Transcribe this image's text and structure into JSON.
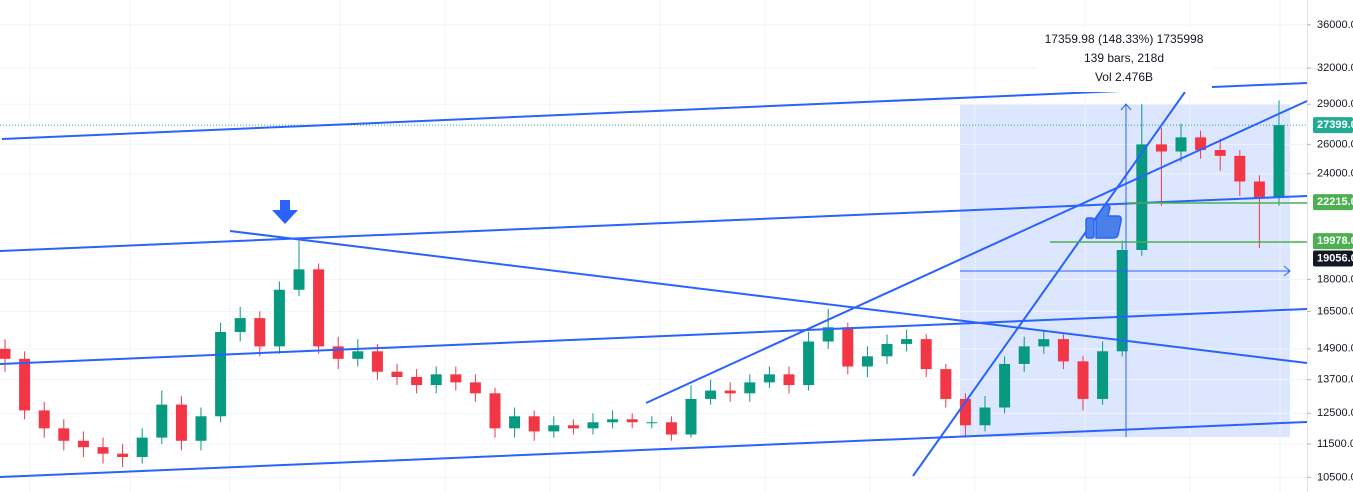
{
  "chart_data": {
    "type": "candlestick",
    "log_scale": true,
    "grid": true,
    "ylim": [
      10090,
      38520
    ],
    "yticks": [
      {
        "value": 36000,
        "label": "36000.0"
      },
      {
        "value": 32000,
        "label": "32000.0"
      },
      {
        "value": 29000,
        "label": "29000.0"
      },
      {
        "value": 26000,
        "label": "26000.0"
      },
      {
        "value": 24000,
        "label": "24000.0"
      },
      {
        "value": 18000,
        "label": "18000.0"
      },
      {
        "value": 16500,
        "label": "16500.0"
      },
      {
        "value": 14900,
        "label": "14900.0"
      },
      {
        "value": 13700,
        "label": "13700.0"
      },
      {
        "value": 12500,
        "label": "12500.0"
      },
      {
        "value": 11500,
        "label": "11500.0"
      },
      {
        "value": 10500,
        "label": "10500.0"
      }
    ],
    "up_color": "#089981",
    "down_color": "#f23645",
    "open": [
      14900,
      14500,
      12600,
      12000,
      11600,
      11400,
      11200,
      11100,
      11700,
      12800,
      11600,
      12400,
      15600,
      16200,
      15000,
      17500,
      18500,
      15000,
      14500,
      14800,
      14000,
      13800,
      13500,
      13900,
      13600,
      13200,
      12000,
      12400,
      11900,
      12100,
      12000,
      12200,
      12300,
      12200,
      12200,
      11800,
      13000,
      13300,
      13200,
      13600,
      13900,
      13500,
      15200,
      15800,
      14200,
      14600,
      15100,
      15300,
      14100,
      13000,
      12100,
      12700,
      14300,
      15000,
      15300,
      14400,
      13000,
      14800,
      19500,
      26000,
      25500,
      26500,
      25600,
      25200,
      23500,
      22500
    ],
    "high": [
      15300,
      14800,
      12900,
      12300,
      11900,
      11700,
      11500,
      12000,
      13300,
      13100,
      12700,
      16000,
      16700,
      16500,
      17900,
      20000,
      18800,
      15400,
      15300,
      15100,
      14300,
      14100,
      14200,
      14200,
      13900,
      13400,
      12700,
      12600,
      12400,
      12300,
      12500,
      12600,
      12500,
      12400,
      12400,
      13500,
      13700,
      13600,
      13900,
      14200,
      14200,
      15600,
      16600,
      16000,
      15000,
      15500,
      15700,
      15500,
      14300,
      13200,
      13100,
      14600,
      15400,
      15700,
      15500,
      14600,
      15200,
      20000,
      29000,
      27200,
      27500,
      27000,
      26400,
      25600,
      23900,
      29300
    ],
    "low": [
      14000,
      12300,
      11700,
      11300,
      11100,
      10900,
      10800,
      10900,
      11500,
      11300,
      11300,
      12200,
      15200,
      14600,
      14700,
      17200,
      14700,
      14100,
      14200,
      13700,
      13500,
      13200,
      13200,
      13300,
      12900,
      11700,
      11700,
      11600,
      11700,
      11800,
      11800,
      12000,
      12000,
      12000,
      11600,
      11700,
      12800,
      12900,
      12900,
      13400,
      13200,
      13300,
      14900,
      13900,
      13800,
      14300,
      14800,
      13800,
      12700,
      11700,
      11900,
      12500,
      14000,
      14700,
      14100,
      12600,
      12800,
      14600,
      19200,
      22000,
      24800,
      25000,
      24200,
      22600,
      19600,
      22000
    ],
    "close": [
      14500,
      12600,
      12000,
      11600,
      11400,
      11200,
      11100,
      11700,
      12800,
      11600,
      12400,
      15600,
      16200,
      15000,
      17500,
      18500,
      15000,
      14500,
      14800,
      14000,
      13800,
      13500,
      13900,
      13600,
      13200,
      12000,
      12400,
      11900,
      12100,
      12000,
      12200,
      12300,
      12200,
      12200,
      11800,
      13000,
      13300,
      13200,
      13600,
      13900,
      13500,
      15200,
      15800,
      14200,
      14600,
      15100,
      15300,
      14100,
      13000,
      12100,
      12700,
      14300,
      15000,
      15300,
      14400,
      13000,
      14800,
      19500,
      26000,
      25500,
      26500,
      25600,
      25200,
      23500,
      22500,
      27399
    ],
    "price_labels": [
      {
        "value": 27399,
        "label": "27399.0",
        "color": "#22ab94"
      },
      {
        "value": 22215,
        "label": "22215.0",
        "color": "#4caf50"
      },
      {
        "value": 19978,
        "label": "19978.0",
        "color": "#4caf50"
      },
      {
        "value": 19056,
        "label": "19056.0",
        "color": "#131722"
      }
    ],
    "measure": {
      "lines": [
        "17359.98 (148.33%) 1735998",
        "139 bars, 218d",
        "Vol 2.476B"
      ]
    }
  }
}
